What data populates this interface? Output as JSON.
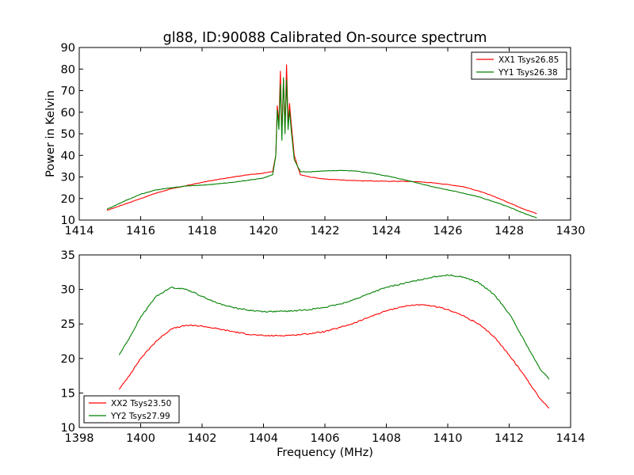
{
  "figure": {
    "title": "gl88, ID:90088 Calibrated On-source spectrum"
  },
  "chart_data": [
    {
      "type": "line",
      "title": "gl88, ID:90088 Calibrated On-source spectrum",
      "xlabel": "",
      "ylabel": "Power in Kelvin",
      "xlim": [
        1414,
        1430
      ],
      "ylim": [
        10,
        90
      ],
      "xticks": [
        1414,
        1416,
        1418,
        1420,
        1422,
        1424,
        1426,
        1428,
        1430
      ],
      "yticks": [
        10,
        20,
        30,
        40,
        50,
        60,
        70,
        80,
        90
      ],
      "legend": "top-right",
      "grid": false,
      "series": [
        {
          "name": "XX1 Tsys26.85",
          "color": "#ff0000",
          "x": [
            1414.9,
            1415.5,
            1416.0,
            1416.5,
            1417.0,
            1417.5,
            1418.0,
            1418.5,
            1419.0,
            1419.5,
            1420.0,
            1420.3,
            1420.4,
            1420.45,
            1420.5,
            1420.55,
            1420.6,
            1420.65,
            1420.7,
            1420.75,
            1420.8,
            1420.85,
            1420.9,
            1421.0,
            1421.2,
            1421.5,
            1422.0,
            1423.0,
            1424.0,
            1424.5,
            1425.0,
            1425.5,
            1426.0,
            1426.5,
            1427.0,
            1427.5,
            1428.0,
            1428.5,
            1428.9
          ],
          "y": [
            14.5,
            17.5,
            20.0,
            22.5,
            24.5,
            26.0,
            27.5,
            28.8,
            30.0,
            31.0,
            31.8,
            32.5,
            40.0,
            63.0,
            55.0,
            79.0,
            50.0,
            75.0,
            52.0,
            82.0,
            55.0,
            64.0,
            55.0,
            40.0,
            31.0,
            30.0,
            29.0,
            28.3,
            28.0,
            28.0,
            27.8,
            27.3,
            26.5,
            25.5,
            23.5,
            21.0,
            18.0,
            15.0,
            13.0
          ]
        },
        {
          "name": "YY1 Tsys26.38",
          "color": "#008000",
          "x": [
            1414.9,
            1415.5,
            1416.0,
            1416.5,
            1417.0,
            1417.5,
            1418.0,
            1418.5,
            1419.0,
            1419.5,
            1420.0,
            1420.3,
            1420.4,
            1420.45,
            1420.5,
            1420.55,
            1420.6,
            1420.65,
            1420.7,
            1420.75,
            1420.8,
            1420.85,
            1420.9,
            1421.0,
            1421.2,
            1421.5,
            1422.0,
            1422.5,
            1423.0,
            1423.5,
            1424.0,
            1424.5,
            1425.0,
            1425.5,
            1426.0,
            1426.5,
            1427.0,
            1427.5,
            1428.0,
            1428.5,
            1428.9
          ],
          "y": [
            15.0,
            19.0,
            22.0,
            24.0,
            25.0,
            25.8,
            26.2,
            26.8,
            27.5,
            28.5,
            29.5,
            31.0,
            40.0,
            61.0,
            52.0,
            73.0,
            47.0,
            76.0,
            50.0,
            75.0,
            52.0,
            61.0,
            52.0,
            38.0,
            32.5,
            32.3,
            32.8,
            33.0,
            32.7,
            31.8,
            30.5,
            29.0,
            27.3,
            25.5,
            24.0,
            22.5,
            20.8,
            18.5,
            16.0,
            13.0,
            11.0
          ]
        }
      ]
    },
    {
      "type": "line",
      "title": "",
      "xlabel": "Frequency (MHz)",
      "ylabel": "",
      "xlim": [
        1398,
        1414
      ],
      "ylim": [
        10,
        35
      ],
      "xticks": [
        1398,
        1400,
        1402,
        1404,
        1406,
        1408,
        1410,
        1412,
        1414
      ],
      "yticks": [
        10,
        15,
        20,
        25,
        30,
        35
      ],
      "legend": "bottom-left",
      "grid": false,
      "series": [
        {
          "name": "XX2 Tsys23.50",
          "color": "#ff0000",
          "x": [
            1399.3,
            1399.7,
            1400.0,
            1400.5,
            1401.0,
            1401.5,
            1402.0,
            1402.5,
            1403.0,
            1403.5,
            1404.0,
            1404.5,
            1405.0,
            1405.5,
            1406.0,
            1406.5,
            1407.0,
            1407.5,
            1408.0,
            1408.5,
            1409.0,
            1409.5,
            1410.0,
            1410.5,
            1411.0,
            1411.5,
            1412.0,
            1412.5,
            1413.0,
            1413.3
          ],
          "y": [
            15.5,
            18.0,
            20.0,
            22.5,
            24.3,
            24.8,
            24.7,
            24.3,
            23.9,
            23.5,
            23.3,
            23.3,
            23.4,
            23.6,
            23.9,
            24.5,
            25.2,
            26.1,
            26.9,
            27.5,
            27.8,
            27.6,
            27.1,
            26.2,
            25.0,
            23.2,
            20.5,
            17.5,
            14.2,
            12.8
          ]
        },
        {
          "name": "YY2 Tsys27.99",
          "color": "#008000",
          "x": [
            1399.3,
            1399.7,
            1400.0,
            1400.5,
            1401.0,
            1401.5,
            1402.0,
            1402.5,
            1403.0,
            1403.5,
            1404.0,
            1404.5,
            1405.0,
            1405.5,
            1406.0,
            1406.5,
            1407.0,
            1407.5,
            1408.0,
            1408.5,
            1409.0,
            1409.5,
            1410.0,
            1410.5,
            1411.0,
            1411.5,
            1412.0,
            1412.5,
            1413.0,
            1413.3
          ],
          "y": [
            20.5,
            23.5,
            26.0,
            29.0,
            30.3,
            30.0,
            29.0,
            28.0,
            27.4,
            27.0,
            26.8,
            26.8,
            26.9,
            27.1,
            27.4,
            27.9,
            28.6,
            29.5,
            30.3,
            30.8,
            31.3,
            31.8,
            32.1,
            31.8,
            31.0,
            29.3,
            26.5,
            22.5,
            18.5,
            17.0
          ]
        }
      ]
    }
  ]
}
